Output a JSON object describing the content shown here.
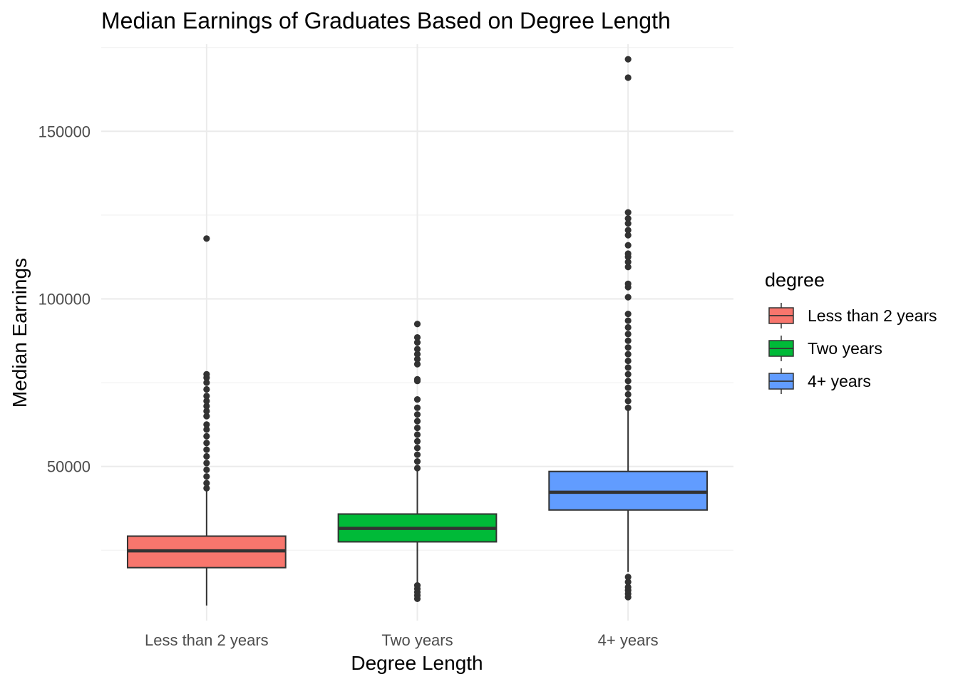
{
  "chart_data": {
    "type": "boxplot",
    "title": "Median Earnings of Graduates Based on Degree Length",
    "xlabel": "Degree Length",
    "ylabel": "Median Earnings",
    "ylim": [
      4000,
      176000
    ],
    "y_ticks": [
      50000,
      100000,
      150000
    ],
    "y_tick_labels": [
      "50000",
      "100000",
      "150000"
    ],
    "y_minor_ticks": [
      25000,
      75000,
      125000,
      175000
    ],
    "grid": true,
    "legend": {
      "title": "degree",
      "position": "right",
      "entries": [
        "Less than 2 years",
        "Two years",
        "4+ years"
      ]
    },
    "categories": [
      "Less than 2 years",
      "Two years",
      "4+ years"
    ],
    "series": [
      {
        "name": "Less than 2 years",
        "color": "#F8766D",
        "whisker_low": 8500,
        "q1": 19800,
        "median": 24800,
        "q3": 29200,
        "whisker_high": 43000,
        "outliers": [
          43500,
          45000,
          47000,
          49000,
          51000,
          53000,
          55000,
          57000,
          59000,
          61000,
          62500,
          65000,
          66500,
          68000,
          69500,
          71000,
          73000,
          75000,
          76500,
          77500,
          118000
        ]
      },
      {
        "name": "Two years",
        "color": "#00BA38",
        "whisker_low": 15000,
        "q1": 27500,
        "median": 31500,
        "q3": 35800,
        "whisker_high": 48800,
        "outliers": [
          10500,
          11500,
          12500,
          13500,
          14500,
          49500,
          51500,
          53500,
          55500,
          57500,
          59500,
          61500,
          63500,
          65500,
          67500,
          70000,
          75500,
          76000,
          80500,
          82000,
          83500,
          85000,
          87000,
          88500,
          92500
        ]
      },
      {
        "name": "4+ years",
        "color": "#619CFF",
        "whisker_low": 18500,
        "q1": 37000,
        "median": 42300,
        "q3": 48500,
        "whisker_high": 66800,
        "outliers": [
          11000,
          12000,
          13000,
          14000,
          15500,
          17000,
          67500,
          69500,
          71500,
          73500,
          75500,
          77500,
          79500,
          81500,
          83500,
          85500,
          87500,
          89500,
          91500,
          93500,
          95500,
          100500,
          103500,
          104500,
          109500,
          111000,
          112500,
          113500,
          116000,
          119000,
          120500,
          122500,
          124000,
          125800,
          166000,
          171500
        ]
      }
    ]
  }
}
